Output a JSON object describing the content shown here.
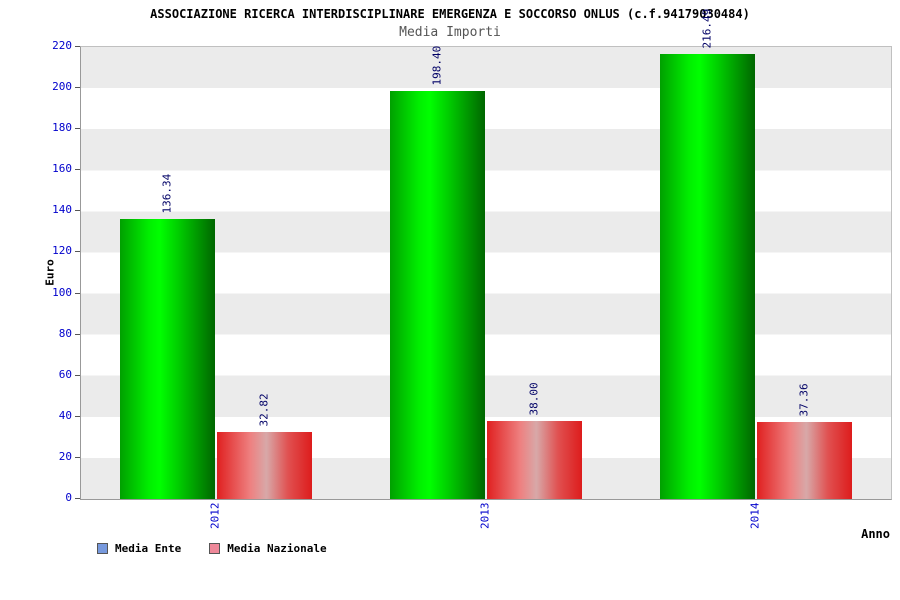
{
  "title": "ASSOCIAZIONE RICERCA INTERDISCIPLINARE EMERGENZA E SOCCORSO ONLUS (c.f.94179030484)",
  "subtitle": "Media Importi",
  "axis": {
    "y_label": "Euro",
    "x_label": "Anno"
  },
  "legend": [
    {
      "label": "Media Ente",
      "color": "#7799dd"
    },
    {
      "label": "Media Nazionale",
      "color": "#ee8899"
    }
  ],
  "chart_data": {
    "type": "bar",
    "title": "Media Importi",
    "categories": [
      "2012",
      "2013",
      "2014"
    ],
    "series": [
      {
        "name": "Media Ente",
        "values": [
          136.34,
          198.4,
          216.49
        ]
      },
      {
        "name": "Media Nazionale",
        "values": [
          32.82,
          38.0,
          37.36
        ]
      }
    ],
    "xlabel": "Anno",
    "ylabel": "Euro",
    "ylim": [
      0,
      220
    ],
    "y_ticks": [
      0,
      20,
      40,
      60,
      80,
      100,
      120,
      140,
      160,
      180,
      200,
      220
    ],
    "grid": "horizontal-bands",
    "legend_position": "bottom-left"
  }
}
